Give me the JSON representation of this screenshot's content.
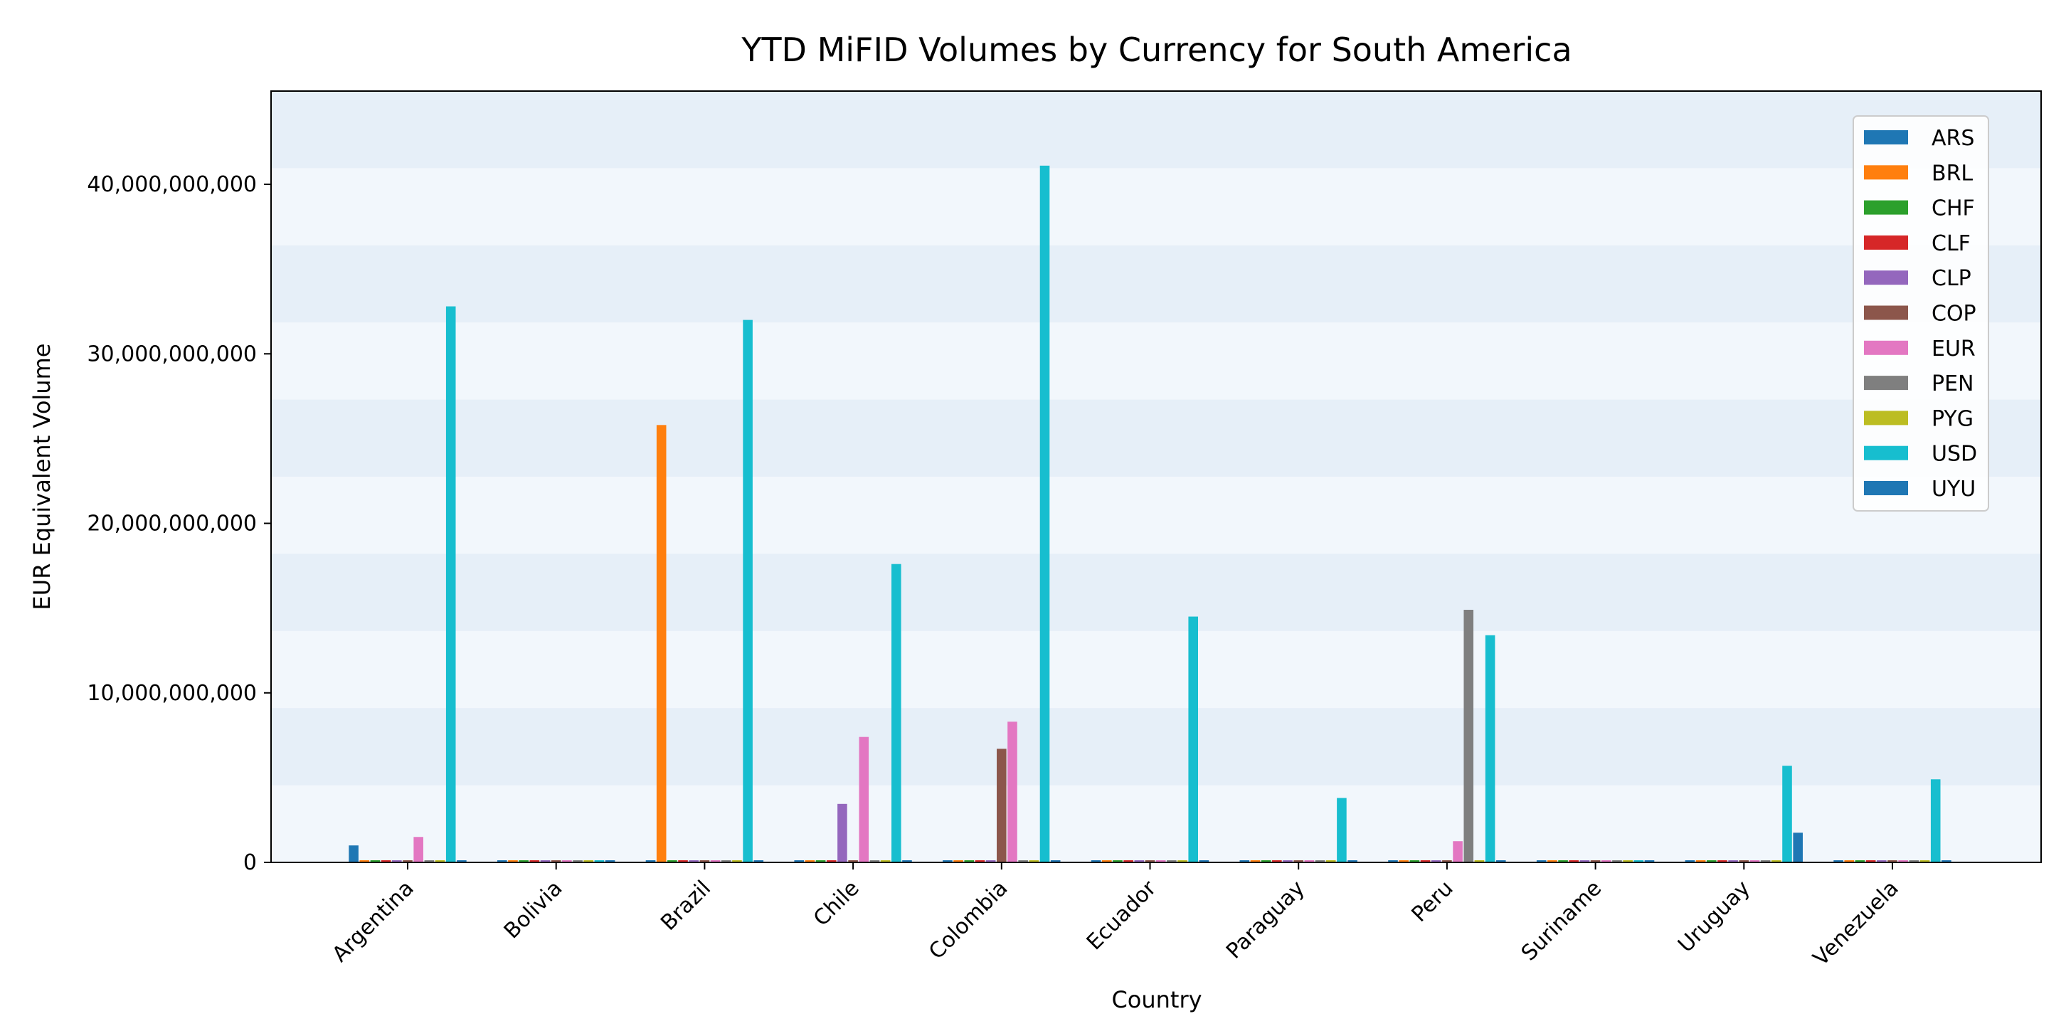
{
  "chart_data": {
    "type": "bar",
    "title": "YTD MiFID Volumes by Currency for South America",
    "xlabel": "Country",
    "ylabel": "EUR Equivalent Volume",
    "ylim": [
      0,
      45500000000
    ],
    "yticks": [
      {
        "value": 0,
        "label": "0"
      },
      {
        "value": 10000000000,
        "label": "10,000,000,000"
      },
      {
        "value": 20000000000,
        "label": "20,000,000,000"
      },
      {
        "value": 30000000000,
        "label": "30,000,000,000"
      },
      {
        "value": 40000000000,
        "label": "40,000,000,000"
      }
    ],
    "grid": "horizontal alternating bands",
    "legend_position": "top-right",
    "categories": [
      "Argentina",
      "Bolivia",
      "Brazil",
      "Chile",
      "Colombia",
      "Ecuador",
      "Paraguay",
      "Peru",
      "Suriname",
      "Uruguay",
      "Venezuela"
    ],
    "series": [
      {
        "name": "ARS",
        "color": "#1f77b4",
        "values": [
          1000000000,
          0,
          0,
          0,
          0,
          0,
          0,
          0,
          0,
          0,
          0
        ]
      },
      {
        "name": "BRL",
        "color": "#ff7f0e",
        "values": [
          0,
          0,
          25800000000,
          0,
          0,
          0,
          0,
          0,
          0,
          0,
          0
        ]
      },
      {
        "name": "CHF",
        "color": "#2ca02c",
        "values": [
          0,
          0,
          0,
          0,
          0,
          0,
          0,
          0,
          0,
          0,
          0
        ]
      },
      {
        "name": "CLF",
        "color": "#d62728",
        "values": [
          0,
          0,
          0,
          0,
          0,
          0,
          0,
          0,
          0,
          0,
          0
        ]
      },
      {
        "name": "CLP",
        "color": "#9467bd",
        "values": [
          0,
          0,
          0,
          3450000000,
          0,
          0,
          0,
          0,
          0,
          0,
          0
        ]
      },
      {
        "name": "COP",
        "color": "#8c564b",
        "values": [
          0,
          0,
          0,
          0,
          6700000000,
          0,
          0,
          0,
          0,
          0,
          0
        ]
      },
      {
        "name": "EUR",
        "color": "#e377c2",
        "values": [
          1500000000,
          0,
          0,
          7400000000,
          8300000000,
          0,
          0,
          1250000000,
          0,
          0,
          0
        ]
      },
      {
        "name": "PEN",
        "color": "#7f7f7f",
        "values": [
          0,
          0,
          0,
          0,
          0,
          0,
          0,
          14900000000,
          0,
          0,
          0
        ]
      },
      {
        "name": "PYG",
        "color": "#bcbd22",
        "values": [
          0,
          0,
          0,
          0,
          0,
          0,
          0,
          0,
          0,
          0,
          0
        ]
      },
      {
        "name": "USD",
        "color": "#17becf",
        "values": [
          32800000000,
          0,
          32000000000,
          17600000000,
          41100000000,
          14500000000,
          3800000000,
          13400000000,
          0,
          5700000000,
          4900000000
        ]
      },
      {
        "name": "UYU",
        "color": "#1f77b4",
        "values": [
          0,
          0,
          0,
          0,
          0,
          0,
          0,
          0,
          0,
          1750000000,
          0
        ]
      }
    ]
  }
}
